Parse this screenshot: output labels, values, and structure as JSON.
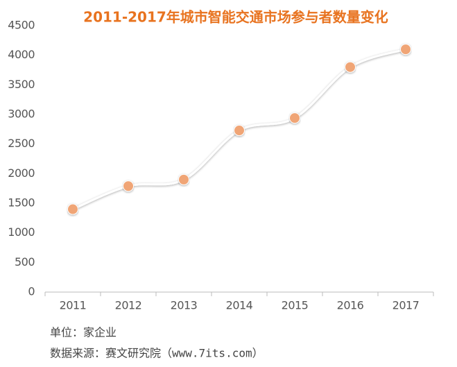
{
  "chart_data": {
    "type": "line",
    "title": "2011-2017年城市智能交通市场参与者数量变化",
    "categories": [
      "2011",
      "2012",
      "2013",
      "2014",
      "2015",
      "2016",
      "2017"
    ],
    "values": [
      1400,
      1790,
      1900,
      2730,
      2940,
      3800,
      4100
    ],
    "color": "#f0a576",
    "line_color": "#ffffff",
    "smooth": true,
    "ylim": [
      0,
      4500
    ],
    "yticks": [
      0,
      500,
      1000,
      1500,
      2000,
      2500,
      3000,
      3500,
      4000,
      4500
    ],
    "grid": false,
    "notes": [
      "单位：家企业",
      "数据来源：赛文研究院（www.7its.com）"
    ]
  }
}
